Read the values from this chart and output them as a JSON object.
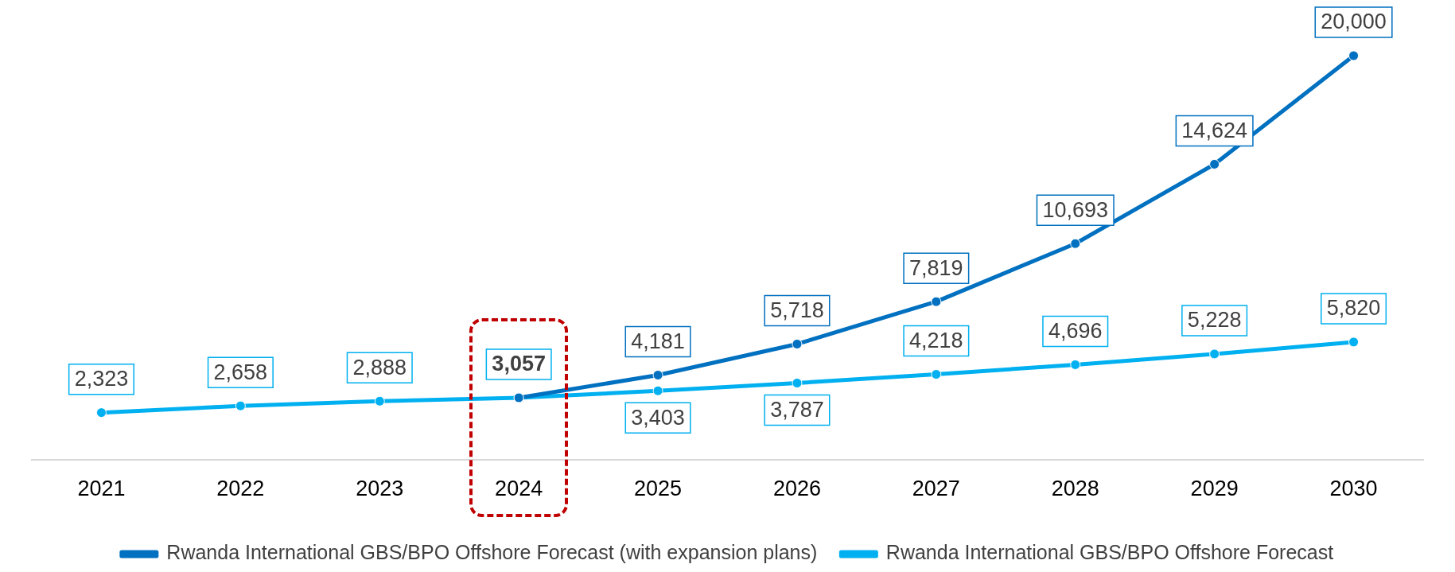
{
  "chart_data": {
    "type": "line",
    "categories": [
      "2021",
      "2022",
      "2023",
      "2024",
      "2025",
      "2026",
      "2027",
      "2028",
      "2029",
      "2030"
    ],
    "series": [
      {
        "name": "Rwanda International GBS/BPO Offshore Forecast (with expansion plans)",
        "color": "#0070c0",
        "values": [
          null,
          null,
          null,
          3057,
          4181,
          5718,
          7819,
          10693,
          14624,
          20000
        ],
        "value_labels": [
          null,
          null,
          null,
          null,
          "4,181",
          "5,718",
          "7,819",
          "10,693",
          "14,624",
          "20,000"
        ]
      },
      {
        "name": "Rwanda International GBS/BPO Offshore Forecast",
        "color": "#00b0f0",
        "values": [
          2323,
          2658,
          2888,
          3057,
          3403,
          3787,
          4218,
          4696,
          5228,
          5820
        ],
        "value_labels": [
          "2,323",
          "2,658",
          "2,888",
          "3,057",
          "3,403",
          "3,787",
          "4,218",
          "4,696",
          "5,228",
          "5,820"
        ]
      }
    ],
    "legend": "bottom",
    "marker": "circle",
    "line_style": "solid",
    "grid": false
  }
}
